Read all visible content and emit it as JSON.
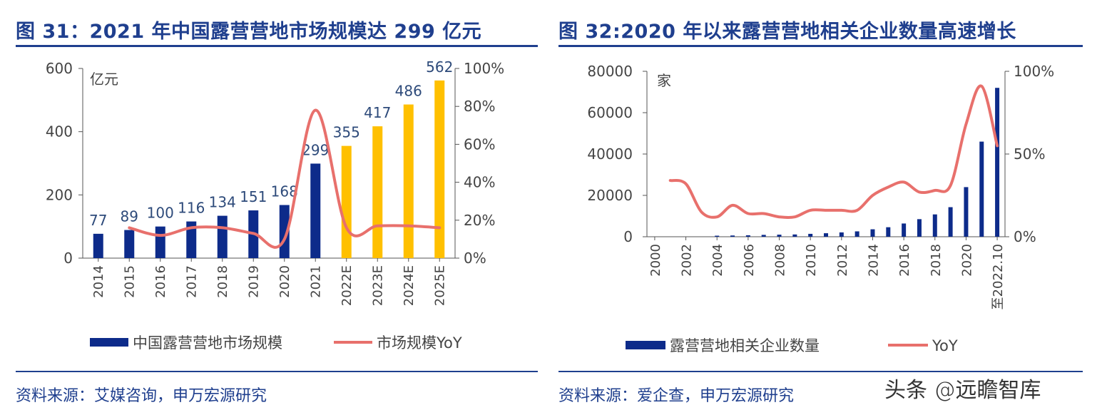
{
  "left": {
    "figure_title": "图 31：2021 年中国露营营地市场规模达 299 亿元",
    "source": "资料来源：艾媒咨询，申万宏源研究"
  },
  "right": {
    "figure_title": "图 32:2020 年以来露营营地相关企业数量高速增长",
    "source": "资料来源：爱企查，申万宏源研究"
  },
  "watermark": "头条 @远瞻智库",
  "colors": {
    "navy": "#0d2b8a",
    "gold": "#ffc000",
    "line": "#e8706c",
    "title": "#1f3f8e",
    "axis": "#555555"
  },
  "chart_data": [
    {
      "type": "bar",
      "categories": [
        "2014",
        "2015",
        "2016",
        "2017",
        "2018",
        "2019",
        "2020",
        "2021",
        "2022E",
        "2023E",
        "2024E",
        "2025E"
      ],
      "series": [
        {
          "name": "中国露营营地市场规模",
          "values": [
            77,
            89,
            100,
            116,
            134,
            151,
            168,
            299,
            355,
            417,
            486,
            562
          ],
          "forecast_from_index": 8
        },
        {
          "name": "市场规模YoY",
          "type": "line",
          "axis": "right",
          "values": [
            null,
            16,
            12,
            16,
            16,
            13,
            10,
            78,
            16,
            17,
            17,
            16
          ]
        }
      ],
      "ylabel": "亿元",
      "ylim": [
        0,
        600
      ],
      "yticks": [
        0,
        200,
        400,
        600
      ],
      "y2lim": [
        0,
        100
      ],
      "y2ticks": [
        "0%",
        "20%",
        "40%",
        "60%",
        "80%",
        "100%"
      ],
      "legend": "bottom"
    },
    {
      "type": "bar",
      "categories": [
        "2000",
        "2001",
        "2002",
        "2003",
        "2004",
        "2005",
        "2006",
        "2007",
        "2008",
        "2009",
        "2010",
        "2011",
        "2012",
        "2013",
        "2014",
        "2015",
        "2016",
        "2017",
        "2018",
        "2019",
        "2020",
        "2021",
        "至2022.10"
      ],
      "xtick_labels": [
        "2000",
        "2002",
        "2004",
        "2006",
        "2008",
        "2010",
        "2012",
        "2014",
        "2016",
        "2018",
        "2020",
        "至2022.10"
      ],
      "series": [
        {
          "name": "露营营地相关企业数量",
          "values": [
            null,
            null,
            null,
            null,
            500,
            600,
            700,
            900,
            1000,
            1100,
            1400,
            1700,
            2100,
            2600,
            3600,
            4600,
            6400,
            8500,
            10800,
            14300,
            24000,
            46000,
            72000
          ]
        },
        {
          "name": "YoY",
          "type": "line",
          "axis": "right",
          "values": [
            null,
            34,
            32,
            15,
            12,
            19,
            14,
            14,
            12,
            12,
            16,
            16,
            16,
            16,
            25,
            30,
            33,
            27,
            28,
            31,
            68,
            91,
            55
          ]
        }
      ],
      "ylabel": "家",
      "ylim": [
        0,
        80000
      ],
      "yticks": [
        0,
        20000,
        40000,
        60000,
        80000
      ],
      "y2lim": [
        0,
        100
      ],
      "y2ticks": [
        "0%",
        "50%",
        "100%"
      ],
      "legend": "bottom"
    }
  ]
}
